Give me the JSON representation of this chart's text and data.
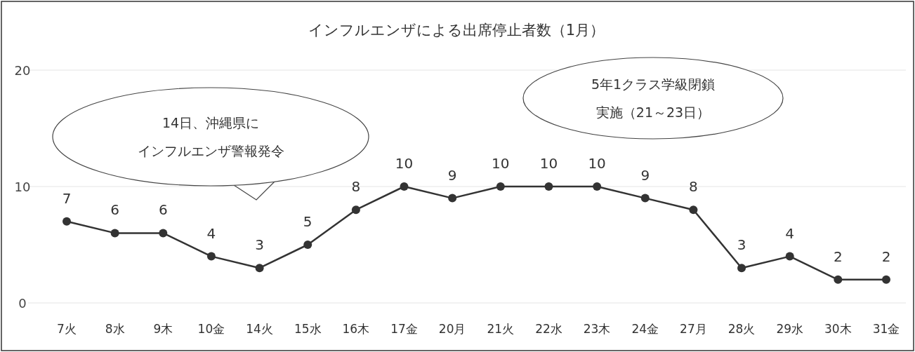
{
  "chart_data": {
    "type": "line",
    "title": "インフルエンザによる出席停止者数（1月）",
    "categories": [
      "7火",
      "8水",
      "9木",
      "10金",
      "14火",
      "15水",
      "16木",
      "17金",
      "20月",
      "21火",
      "22水",
      "23木",
      "24金",
      "27月",
      "28火",
      "29水",
      "30木",
      "31金"
    ],
    "series": [
      {
        "color": "#333333",
        "values": [
          7,
          6,
          6,
          4,
          3,
          5,
          8,
          10,
          9,
          10,
          10,
          10,
          9,
          8,
          3,
          4,
          2,
          2
        ]
      }
    ],
    "ylim": [
      0,
      20
    ],
    "yticks": [
      0,
      10,
      20
    ],
    "grid": "y",
    "marker": "circle",
    "line_style": "solid",
    "data_labels": true,
    "annotations": [
      "14日、沖縄県に",
      "インフルエンザ警報発令",
      "5年1クラス学級閉鎖",
      "実施（21～23日）"
    ]
  }
}
